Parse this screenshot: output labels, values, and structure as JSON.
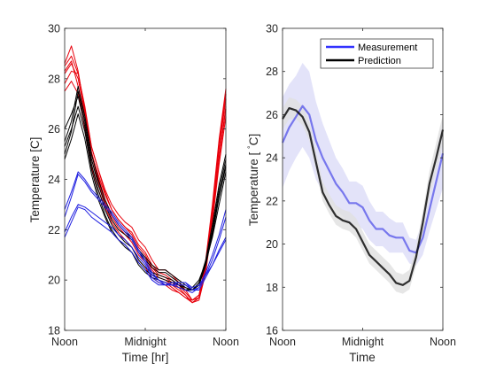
{
  "chart_data": [
    {
      "type": "line",
      "title": "",
      "xlabel": "Time [hr]",
      "ylabel": "Temperature [C]",
      "x_ticks": [
        0,
        12,
        24
      ],
      "x_tick_labels": [
        "Noon",
        "Midnight",
        "Noon"
      ],
      "xlim": [
        0,
        24
      ],
      "ylim": [
        18,
        30
      ],
      "y_ticks": [
        18,
        20,
        22,
        24,
        26,
        28,
        30
      ],
      "grid": false,
      "legend": "none",
      "colors": {
        "red": "#e8000b",
        "black": "#000000",
        "blue": "#1f1fe0"
      },
      "x": [
        0,
        1,
        2,
        3,
        4,
        5,
        6,
        7,
        8,
        9,
        10,
        11,
        12,
        13,
        14,
        15,
        16,
        17,
        18,
        19,
        20,
        21,
        22,
        23,
        24
      ],
      "series": [
        {
          "color": "red",
          "values": [
            28.5,
            28.9,
            28.2,
            26.8,
            25.3,
            24.4,
            23.6,
            23.0,
            22.6,
            22.3,
            22.1,
            21.6,
            21.3,
            20.8,
            20.4,
            20.4,
            20.2,
            19.9,
            19.6,
            19.2,
            19.3,
            20.8,
            23.0,
            25.6,
            27.6
          ]
        },
        {
          "color": "red",
          "values": [
            28.2,
            28.6,
            28.0,
            26.6,
            25.0,
            24.2,
            23.4,
            22.8,
            22.4,
            22.1,
            21.9,
            21.4,
            21.1,
            20.6,
            20.3,
            20.2,
            20.0,
            19.8,
            19.5,
            19.2,
            19.4,
            20.6,
            22.7,
            25.2,
            27.2
          ]
        },
        {
          "color": "red",
          "values": [
            27.8,
            28.3,
            28.2,
            26.9,
            25.3,
            24.4,
            23.5,
            22.8,
            22.4,
            22.1,
            21.8,
            21.3,
            21.0,
            20.5,
            20.2,
            20.1,
            19.9,
            19.7,
            19.4,
            19.1,
            19.3,
            20.4,
            22.5,
            24.8,
            26.8
          ]
        },
        {
          "color": "red",
          "values": [
            28.6,
            29.3,
            28.3,
            26.7,
            25.1,
            24.1,
            23.2,
            22.6,
            22.2,
            21.9,
            21.7,
            21.2,
            20.9,
            20.4,
            20.1,
            20.0,
            19.8,
            19.6,
            19.4,
            19.1,
            19.2,
            20.3,
            22.3,
            24.6,
            26.5
          ]
        },
        {
          "color": "red",
          "values": [
            28.3,
            28.7,
            27.7,
            26.3,
            24.8,
            23.9,
            23.1,
            22.5,
            22.1,
            21.8,
            21.5,
            21.0,
            20.7,
            20.3,
            20.0,
            19.9,
            19.7,
            19.5,
            19.3,
            19.1,
            19.3,
            20.5,
            22.8,
            25.4,
            27.4
          ]
        },
        {
          "color": "red",
          "values": [
            27.5,
            27.9,
            27.4,
            26.0,
            24.5,
            23.6,
            22.9,
            22.3,
            21.9,
            21.6,
            21.3,
            20.8,
            20.5,
            20.1,
            19.9,
            19.8,
            19.6,
            19.5,
            19.3,
            19.2,
            19.4,
            20.6,
            22.6,
            24.9,
            26.9
          ]
        },
        {
          "color": "black",
          "values": [
            25.5,
            26.3,
            27.7,
            26.5,
            25.0,
            24.0,
            23.2,
            22.6,
            22.2,
            21.9,
            21.7,
            21.2,
            20.9,
            20.6,
            20.4,
            20.4,
            20.2,
            20.0,
            19.8,
            19.6,
            19.8,
            20.7,
            22.0,
            23.6,
            24.8
          ]
        },
        {
          "color": "black",
          "values": [
            25.0,
            25.9,
            27.5,
            26.3,
            24.8,
            23.8,
            23.0,
            22.4,
            22.0,
            21.8,
            21.6,
            21.1,
            20.8,
            20.5,
            20.3,
            20.3,
            20.1,
            19.9,
            19.7,
            19.6,
            19.8,
            20.6,
            21.8,
            23.3,
            24.5
          ]
        },
        {
          "color": "black",
          "values": [
            26.0,
            26.6,
            27.3,
            26.1,
            24.6,
            23.6,
            22.8,
            22.2,
            21.8,
            21.5,
            21.3,
            20.8,
            20.5,
            20.3,
            20.2,
            20.1,
            20.0,
            19.8,
            19.7,
            19.6,
            19.9,
            20.8,
            22.2,
            23.8,
            25.0
          ]
        },
        {
          "color": "black",
          "values": [
            25.3,
            26.0,
            26.9,
            25.9,
            24.4,
            23.4,
            22.6,
            22.0,
            21.6,
            21.4,
            21.1,
            20.7,
            20.4,
            20.2,
            20.1,
            20.0,
            19.9,
            19.8,
            19.6,
            19.6,
            19.8,
            20.6,
            21.9,
            23.4,
            24.6
          ]
        },
        {
          "color": "black",
          "values": [
            24.8,
            25.6,
            26.6,
            25.6,
            24.2,
            23.2,
            22.5,
            21.9,
            21.6,
            21.3,
            21.1,
            20.6,
            20.3,
            20.1,
            20.0,
            19.9,
            19.8,
            19.7,
            19.6,
            19.7,
            20.0,
            20.7,
            21.7,
            23.0,
            24.3
          ]
        },
        {
          "color": "blue",
          "values": [
            22.8,
            23.5,
            24.3,
            24.0,
            23.6,
            23.3,
            23.0,
            22.7,
            22.3,
            22.0,
            21.7,
            21.2,
            20.8,
            20.3,
            20.0,
            19.9,
            19.8,
            19.8,
            19.8,
            19.6,
            19.7,
            20.3,
            21.0,
            21.8,
            22.8
          ]
        },
        {
          "color": "blue",
          "values": [
            22.5,
            23.3,
            24.2,
            23.9,
            23.5,
            23.2,
            22.9,
            22.6,
            22.2,
            21.9,
            21.6,
            21.1,
            20.7,
            20.2,
            20.0,
            19.8,
            19.8,
            19.7,
            19.6,
            19.5,
            19.7,
            20.2,
            20.8,
            21.6,
            22.5
          ]
        },
        {
          "color": "blue",
          "values": [
            21.9,
            22.5,
            23.0,
            22.9,
            22.7,
            22.5,
            22.3,
            22.1,
            21.8,
            21.6,
            21.3,
            20.9,
            20.6,
            20.1,
            19.9,
            19.8,
            19.8,
            19.9,
            19.9,
            19.6,
            19.6,
            20.1,
            20.6,
            21.2,
            21.7
          ]
        },
        {
          "color": "blue",
          "values": [
            21.7,
            22.3,
            22.9,
            22.8,
            22.5,
            22.3,
            22.1,
            21.9,
            21.6,
            21.4,
            21.1,
            20.7,
            20.4,
            20.0,
            19.8,
            19.8,
            19.9,
            19.9,
            19.9,
            19.7,
            19.8,
            20.2,
            20.6,
            21.1,
            21.6
          ]
        }
      ]
    },
    {
      "type": "line",
      "title": "",
      "xlabel": "Time",
      "ylabel": "Temperature [°C]",
      "ylabel_parts": [
        "Temperature [ ",
        "°",
        "C]"
      ],
      "x_ticks": [
        0,
        12,
        24
      ],
      "x_tick_labels": [
        "Noon",
        "Midnight",
        "Noon"
      ],
      "xlim": [
        0,
        24
      ],
      "ylim": [
        16,
        30
      ],
      "y_ticks": [
        16,
        18,
        20,
        22,
        24,
        26,
        28,
        30
      ],
      "grid": false,
      "legend": "top-right",
      "x": [
        0,
        1,
        2,
        3,
        4,
        5,
        6,
        7,
        8,
        9,
        10,
        11,
        12,
        13,
        14,
        15,
        16,
        17,
        18,
        19,
        20,
        21,
        22,
        23,
        24
      ],
      "series": [
        {
          "name": "Measurement",
          "color": "#5b5bea",
          "band_color": "#dcdcf8",
          "values": [
            24.7,
            25.4,
            25.9,
            26.4,
            26.0,
            24.8,
            24.0,
            23.4,
            22.8,
            22.4,
            21.9,
            21.9,
            21.7,
            21.1,
            20.7,
            20.7,
            20.4,
            20.3,
            20.3,
            19.7,
            19.6,
            20.3,
            21.6,
            22.9,
            24.2
          ],
          "lower": [
            22.6,
            23.4,
            24.0,
            24.5,
            24.0,
            23.0,
            22.4,
            22.0,
            21.6,
            21.3,
            20.9,
            20.9,
            20.7,
            20.2,
            19.9,
            19.9,
            19.6,
            19.6,
            19.6,
            19.1,
            19.0,
            19.5,
            20.6,
            21.6,
            22.6
          ],
          "upper": [
            26.8,
            27.4,
            27.8,
            28.4,
            28.0,
            26.6,
            25.6,
            24.8,
            24.0,
            23.5,
            22.9,
            22.9,
            22.7,
            22.0,
            21.5,
            21.5,
            21.2,
            21.0,
            21.0,
            20.3,
            20.2,
            21.1,
            22.6,
            24.2,
            25.8
          ]
        },
        {
          "name": "Prediction",
          "color": "#000000",
          "band_color": "#e0e0e0",
          "values": [
            25.8,
            26.3,
            26.2,
            25.9,
            25.2,
            23.8,
            22.4,
            21.8,
            21.3,
            21.1,
            21.0,
            20.7,
            20.1,
            19.5,
            19.2,
            18.9,
            18.6,
            18.2,
            18.1,
            18.3,
            19.4,
            21.0,
            22.8,
            24.0,
            25.3
          ],
          "lower": [
            25.3,
            25.8,
            25.8,
            25.5,
            24.8,
            23.4,
            22.0,
            21.4,
            20.9,
            20.7,
            20.6,
            20.3,
            19.7,
            19.1,
            18.8,
            18.5,
            18.2,
            17.8,
            17.7,
            17.9,
            19.0,
            20.5,
            22.2,
            23.4,
            24.6
          ],
          "upper": [
            26.3,
            26.8,
            26.7,
            26.4,
            25.7,
            24.3,
            22.9,
            22.3,
            21.8,
            21.6,
            21.5,
            21.2,
            20.6,
            20.0,
            19.7,
            19.4,
            19.1,
            18.7,
            18.6,
            18.8,
            19.9,
            21.5,
            23.4,
            24.7,
            26.0
          ]
        }
      ]
    }
  ]
}
